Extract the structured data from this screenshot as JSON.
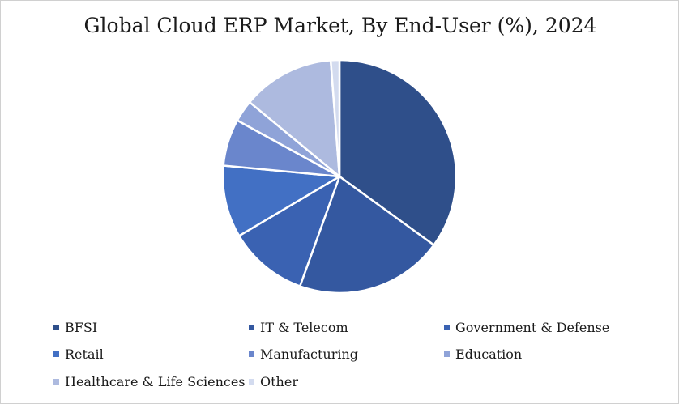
{
  "chart_data": {
    "type": "pie",
    "title": "Global Cloud ERP Market, By End-User (%), 2024",
    "legend_position": "bottom",
    "slices": [
      {
        "name": "BFSI",
        "value": 35.0,
        "color": "#2f4f8a"
      },
      {
        "name": "IT & Telecom",
        "value": 20.5,
        "color": "#3458a0"
      },
      {
        "name": "Government & Defense",
        "value": 11.0,
        "color": "#3a62b2"
      },
      {
        "name": "Retail",
        "value": 10.0,
        "color": "#4270c4"
      },
      {
        "name": "Manufacturing",
        "value": 6.5,
        "color": "#6a86cc"
      },
      {
        "name": "Education",
        "value": 3.0,
        "color": "#8fa3d8"
      },
      {
        "name": "Healthcare & Life Sciences",
        "value": 12.8,
        "color": "#adbadf"
      },
      {
        "name": "Other",
        "value": 1.2,
        "color": "#d3dbef"
      }
    ]
  }
}
